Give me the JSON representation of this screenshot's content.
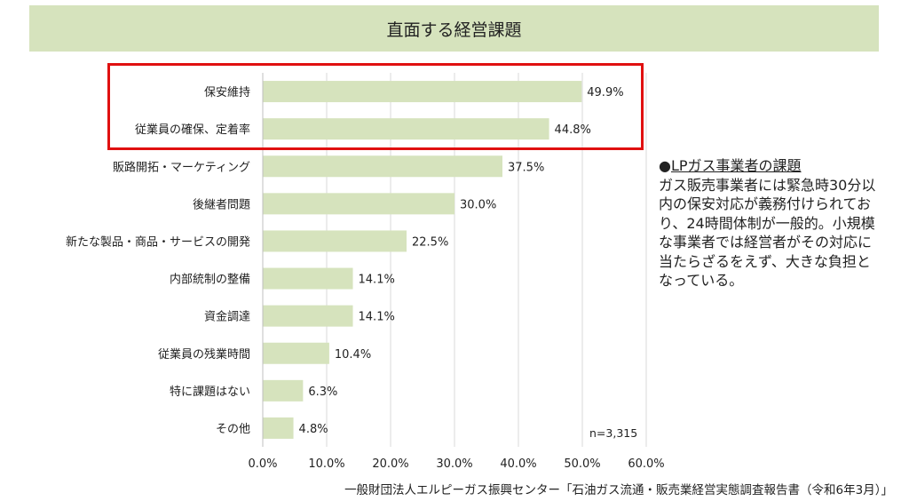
{
  "title": "直面する経営課題",
  "chart_data": {
    "type": "bar",
    "orientation": "horizontal",
    "title": "直面する経営課題",
    "categories": [
      "保安維持",
      "従業員の確保、定着率",
      "販路開拓・マーケティング",
      "後継者問題",
      "新たな製品・商品・サービスの開発",
      "内部統制の整備",
      "資金調達",
      "従業員の残業時間",
      "特に課題はない",
      "その他"
    ],
    "values": [
      49.9,
      44.8,
      37.5,
      30.0,
      22.5,
      14.1,
      14.1,
      10.4,
      6.3,
      4.8
    ],
    "value_labels": [
      "49.9%",
      "44.8%",
      "37.5%",
      "30.0%",
      "22.5%",
      "14.1%",
      "14.1%",
      "10.4%",
      "6.3%",
      "4.8%"
    ],
    "xlim": [
      0,
      60
    ],
    "xticks": [
      0,
      10,
      20,
      30,
      40,
      50,
      60
    ],
    "xtick_labels": [
      "0.0%",
      "10.0%",
      "20.0%",
      "30.0%",
      "40.0%",
      "50.0%",
      "60.0%"
    ],
    "grid": true,
    "bar_color": "#d6e3bd",
    "highlight_color": "#e01010",
    "highlighted_categories": [
      "保安維持",
      "従業員の確保、定着率"
    ]
  },
  "sample_size": "n=3,315",
  "note": {
    "bullet": "●",
    "heading": "LPガス事業者の課題",
    "body": "ガス販売事業者には緊急時30分以内の保安対応が義務付けられており、24時間体制が一般的。小規模な事業者では経営者がその対応に当たらざるをえず、大きな負担となっている。"
  },
  "source": "一般財団法人エルピーガス振興センター「石油ガス流通・販売業経営実態調査報告書（令和6年3月）」"
}
